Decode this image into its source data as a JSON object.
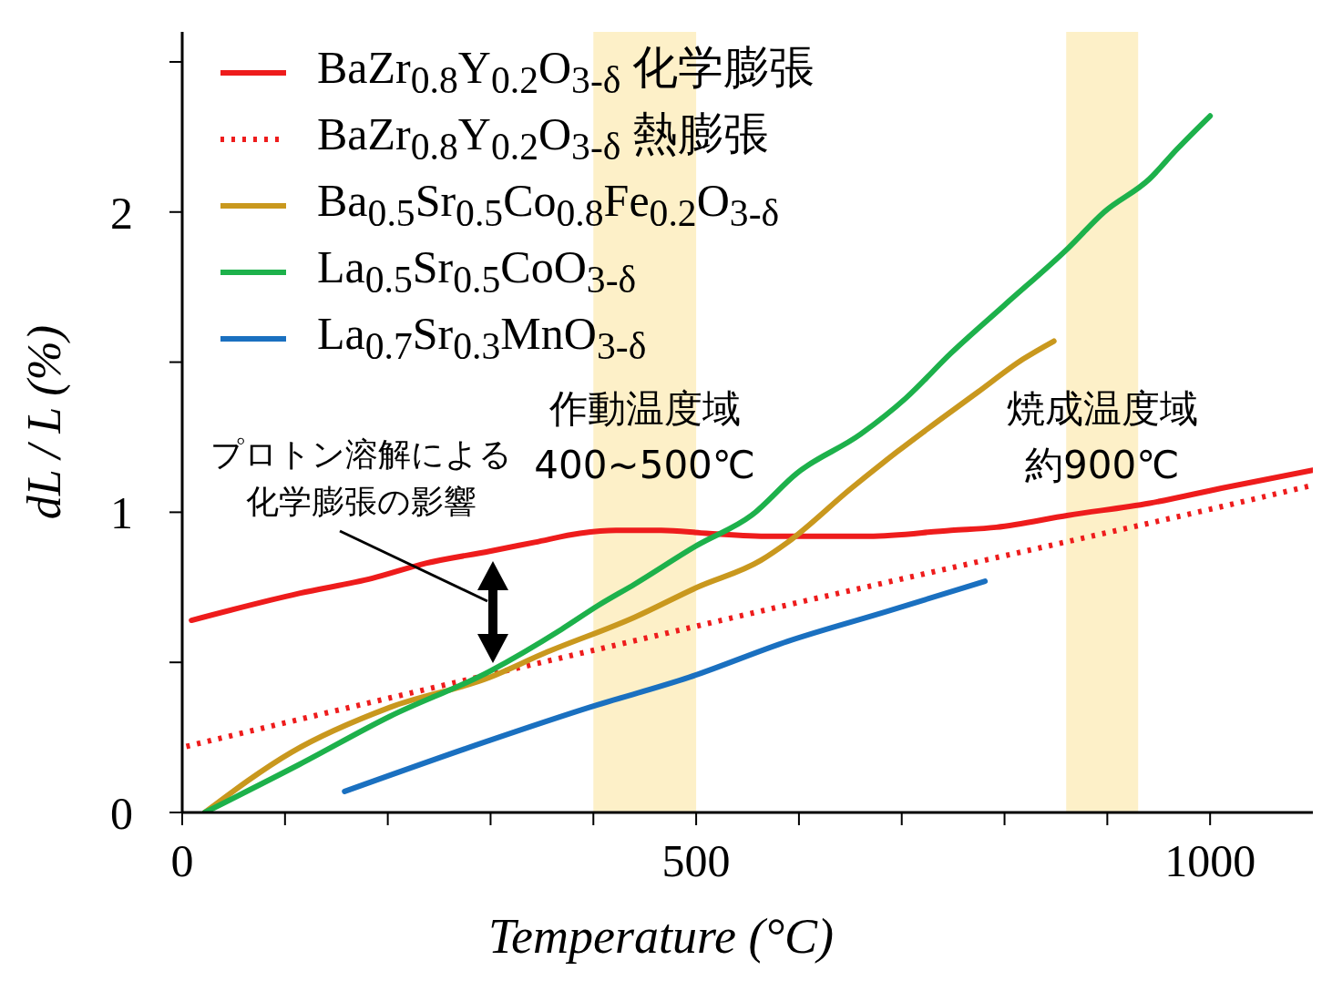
{
  "chart_data": {
    "type": "line",
    "xlabel": "Temperature (°C)",
    "ylabel": "dL / L (%)",
    "xlim": [
      0,
      1100
    ],
    "ylim": [
      0,
      2.6
    ],
    "xticks": [
      0,
      {
        "value": 100,
        "label": null
      },
      {
        "value": 200,
        "label": null
      },
      {
        "value": 300,
        "label": null
      },
      {
        "value": 400,
        "label": null
      },
      500,
      {
        "value": 600,
        "label": null
      },
      {
        "value": 700,
        "label": null
      },
      {
        "value": 800,
        "label": null
      },
      {
        "value": 900,
        "label": null
      },
      1000
    ],
    "yticks": [
      0,
      {
        "value": 0.5,
        "label": null
      },
      1,
      {
        "value": 1.5,
        "label": null
      },
      2,
      {
        "value": 2.5,
        "label": null
      }
    ],
    "grid": false,
    "legend": "top left",
    "marker": "none",
    "series": [
      {
        "name": "BaZr$_{0.8}$Y$_{0.2}$O$_{3-δ}$ 化学膨張",
        "color": "#ee1c1c",
        "line_style": "solid",
        "x": [
          9,
          114,
          185,
          237,
          299,
          343,
          387,
          422,
          466,
          510,
          572,
          668,
          748,
          792,
          862,
          941,
          1011,
          1100
        ],
        "values": [
          0.64,
          0.73,
          0.78,
          0.83,
          0.87,
          0.9,
          0.93,
          0.94,
          0.94,
          0.93,
          0.92,
          0.92,
          0.94,
          0.95,
          0.99,
          1.03,
          1.08,
          1.14
        ]
      },
      {
        "name": "BaZr$_{0.8}$Y$_{0.2}$O$_{3-δ}$ 熱膨張",
        "color": "#ee1c1c",
        "line_style": "dotted",
        "x": [
          4,
          200,
          400,
          600,
          800,
          1000,
          1100
        ],
        "values": [
          0.22,
          0.38,
          0.54,
          0.7,
          0.855,
          1.01,
          1.09
        ]
      },
      {
        "name": "Ba$_{0.5}$Sr$_{0.5}$Co$_{0.8}$Fe$_{0.2}$O$_{3-δ}$",
        "color": "#c9981e",
        "line_style": "solid",
        "x": [
          22,
          106,
          202,
          299,
          352,
          440,
          501,
          563,
          589,
          651,
          695,
          774,
          818,
          848
        ],
        "values": [
          0,
          0.2,
          0.35,
          0.45,
          0.53,
          0.65,
          0.75,
          0.84,
          0.9,
          1.08,
          1.2,
          1.4,
          1.51,
          1.57
        ]
      },
      {
        "name": "La$_{0.5}$Sr$_{0.5}$CoO$_{3-δ}$",
        "color": "#1db14b",
        "line_style": "solid",
        "x": [
          22,
          114,
          202,
          299,
          369,
          405,
          440,
          501,
          554,
          598,
          660,
          704,
          748,
          800,
          862,
          897,
          941,
          968,
          1000
        ],
        "values": [
          0,
          0.16,
          0.32,
          0.47,
          0.61,
          0.69,
          0.76,
          0.89,
          0.99,
          1.13,
          1.26,
          1.38,
          1.53,
          1.69,
          1.88,
          2.0,
          2.11,
          2.21,
          2.32
        ]
      },
      {
        "name": "La$_{0.7}$Sr$_{0.3}$MnO$_{3-δ}$",
        "color": "#1a70c0",
        "line_style": "solid",
        "x": [
          158,
          299,
          396,
          493,
          589,
          686,
          781
        ],
        "values": [
          0.07,
          0.24,
          0.35,
          0.45,
          0.57,
          0.67,
          0.77
        ]
      }
    ],
    "bands": [
      {
        "axis": "x",
        "from": 400,
        "to": 500,
        "label": "作動温度域400~500℃",
        "color": "#fdf0c8"
      },
      {
        "axis": "x",
        "from": 860,
        "to": 930,
        "label": "焼成温度域約900℃",
        "color": "#fdf0c8"
      }
    ],
    "annotations": [
      "プロトン溶解による化学膨張の影響"
    ]
  }
}
